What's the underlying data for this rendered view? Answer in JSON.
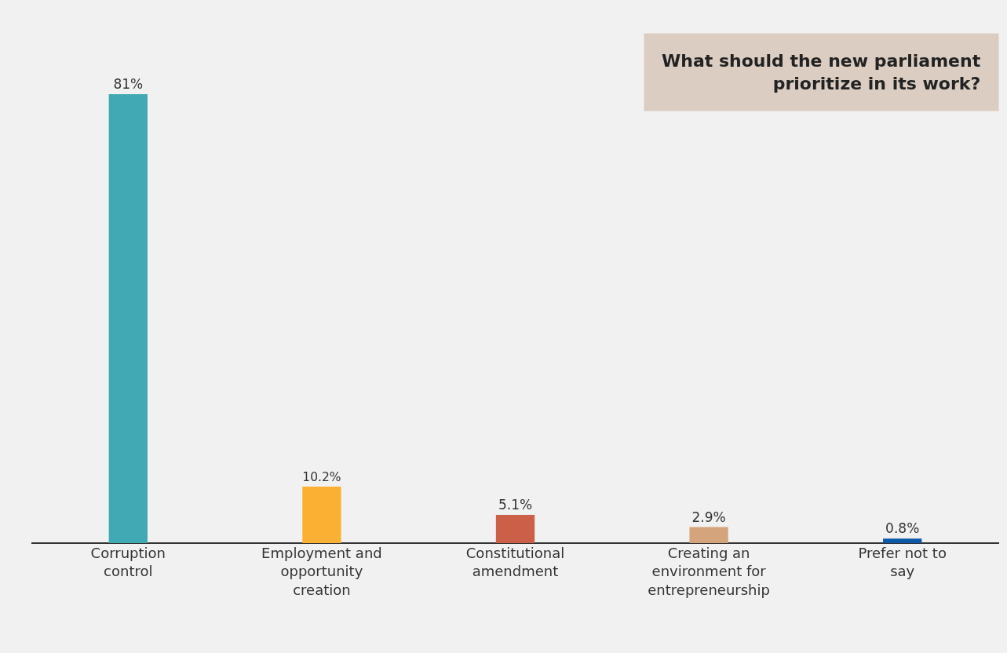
{
  "chart_data": {
    "type": "bar",
    "title": "What should the new parliament prioritize in its work?",
    "categories": [
      "Corruption control",
      "Employment and opportunity creation",
      "Constitutional amendment",
      "Creating an environment for entrepreneurship",
      "Prefer not to say"
    ],
    "values": [
      81,
      10.2,
      5.1,
      2.9,
      0.8
    ],
    "colors": [
      "#41a9b3",
      "#fbb034",
      "#cc5f47",
      "#d4a57c",
      "#0b59a8"
    ],
    "value_labels": [
      "81%",
      "10.2%",
      "5.1%",
      "2.9%",
      "0.8%"
    ],
    "tick_labels": "x",
    "grid": false,
    "legend": false
  }
}
